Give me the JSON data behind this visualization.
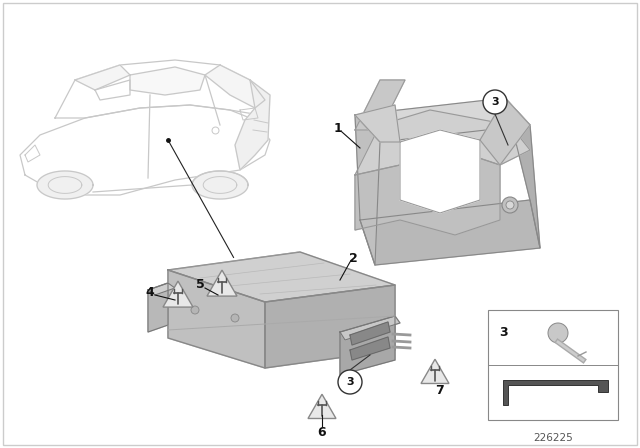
{
  "bg_color": "#ffffff",
  "part_number": "226225",
  "gray_light": "#d0d0d0",
  "gray_mid": "#b8b8b8",
  "gray_dark": "#999999",
  "outline_color": "#aaaaaa",
  "label_color": "#111111",
  "fig_w": 6.4,
  "fig_h": 4.48,
  "dpi": 100
}
